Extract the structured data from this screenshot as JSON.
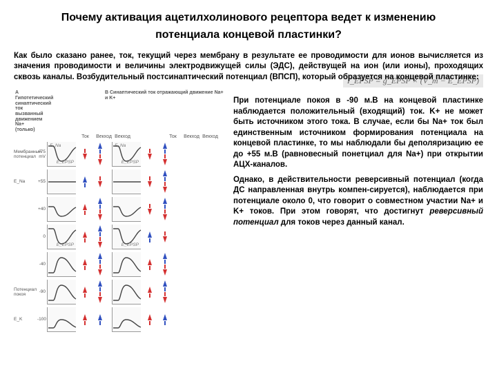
{
  "title_line1": "Почему активация ацетилхолинового рецептора ведет к изменению",
  "title_line2": "потенциала концевой пластинки?",
  "intro": "Как было сказано ранее, ток, текущий через мембрану в результате ее проводимости для ионов вычисляется из значения проводимости и величины электродвижущей силы (ЭДС), действущей на ион (или ионы), проходящих сквозь каналы. Возбудительный постсинаптический потенциал (ВПСП), который образуется на концевой пластинке:",
  "formula": "I_EPSP = g_EPSP × (V_m − E_EPSP)",
  "side_p1": "При потенциале покоя в -90 м.В на концевой пластинке наблюдается положительный (входящий) ток. K+ не может быть источником этого тока. В случае, если бы Na+ ток был единственным источником формирования потенциала на концевой пластинке, то мы наблюдали бы деполяризацию ее до +55 м.В (равновесный понетциал для Na+) при открытии АЦХ-каналов.",
  "side_p2_a": "Однако, в действительности реверсивный потенциал (когда ДС направленная внутрь компен-сируется), наблюдается при потенциале около 0, что говорит о совместном участии Na+ и K+ токов. При этом говорят, что достигнут ",
  "side_p2_em": "реверсивный потенциал",
  "side_p2_b": " для токов через данный канал.",
  "figure": {
    "head_a": "A  Гипотетический синаптический ток вызванный движением Na+ (только)",
    "head_b": "B  Синаптический ток отражающий движение Na+ и K+",
    "sub_head": [
      "Ток",
      "Векход",
      "Векход",
      "Ток",
      "Векход",
      "Векход"
    ],
    "rows": [
      {
        "label": "Мембранный потенциал",
        "val": "+75 mV",
        "shape": "down",
        "arA": [
          "r_dn",
          "b_up",
          "r_dn"
        ],
        "arB": [
          "r_dn",
          "b_up",
          "r_dn"
        ],
        "e1": "E_Na",
        "e2": "E_EPSP"
      },
      {
        "label": "E_Na",
        "val": "+55",
        "shape": "flat",
        "arA": [
          "b_up",
          "r_dn"
        ],
        "arB": [
          "r_dn",
          "b_up",
          "r_dn"
        ]
      },
      {
        "label": "",
        "val": "+40",
        "shape": "downS",
        "arA": [
          "r_up",
          "b_up",
          "r_dn"
        ],
        "arB": [
          "r_dn",
          "b_up",
          "r_dn"
        ]
      },
      {
        "label": "",
        "val": "0",
        "shape": "down",
        "arA": [
          "r_up",
          "b_up",
          "r_dn"
        ],
        "arB": [
          "b_up",
          "r_dn"
        ],
        "e2": "E_EPSP"
      },
      {
        "label": "",
        "val": "-40",
        "shape": "up",
        "arA": [
          "r_up",
          "b_up",
          "r_dn"
        ],
        "arB": [
          "r_up",
          "b_up",
          "r_dn"
        ]
      },
      {
        "label": "Потенциал покоя",
        "val": "-90",
        "shape": "up",
        "arA": [
          "r_up",
          "b_up",
          "r_dn"
        ],
        "arB": [
          "r_up",
          "b_up",
          "r_dn"
        ]
      },
      {
        "label": "E_K",
        "val": "-100",
        "shape": "upS",
        "arA": [
          "r_up",
          "b_up"
        ],
        "arB": [
          "r_up",
          "b_up"
        ]
      }
    ],
    "colors": {
      "red": "#d43030",
      "blue": "#3050c0",
      "trace": "#444"
    }
  }
}
